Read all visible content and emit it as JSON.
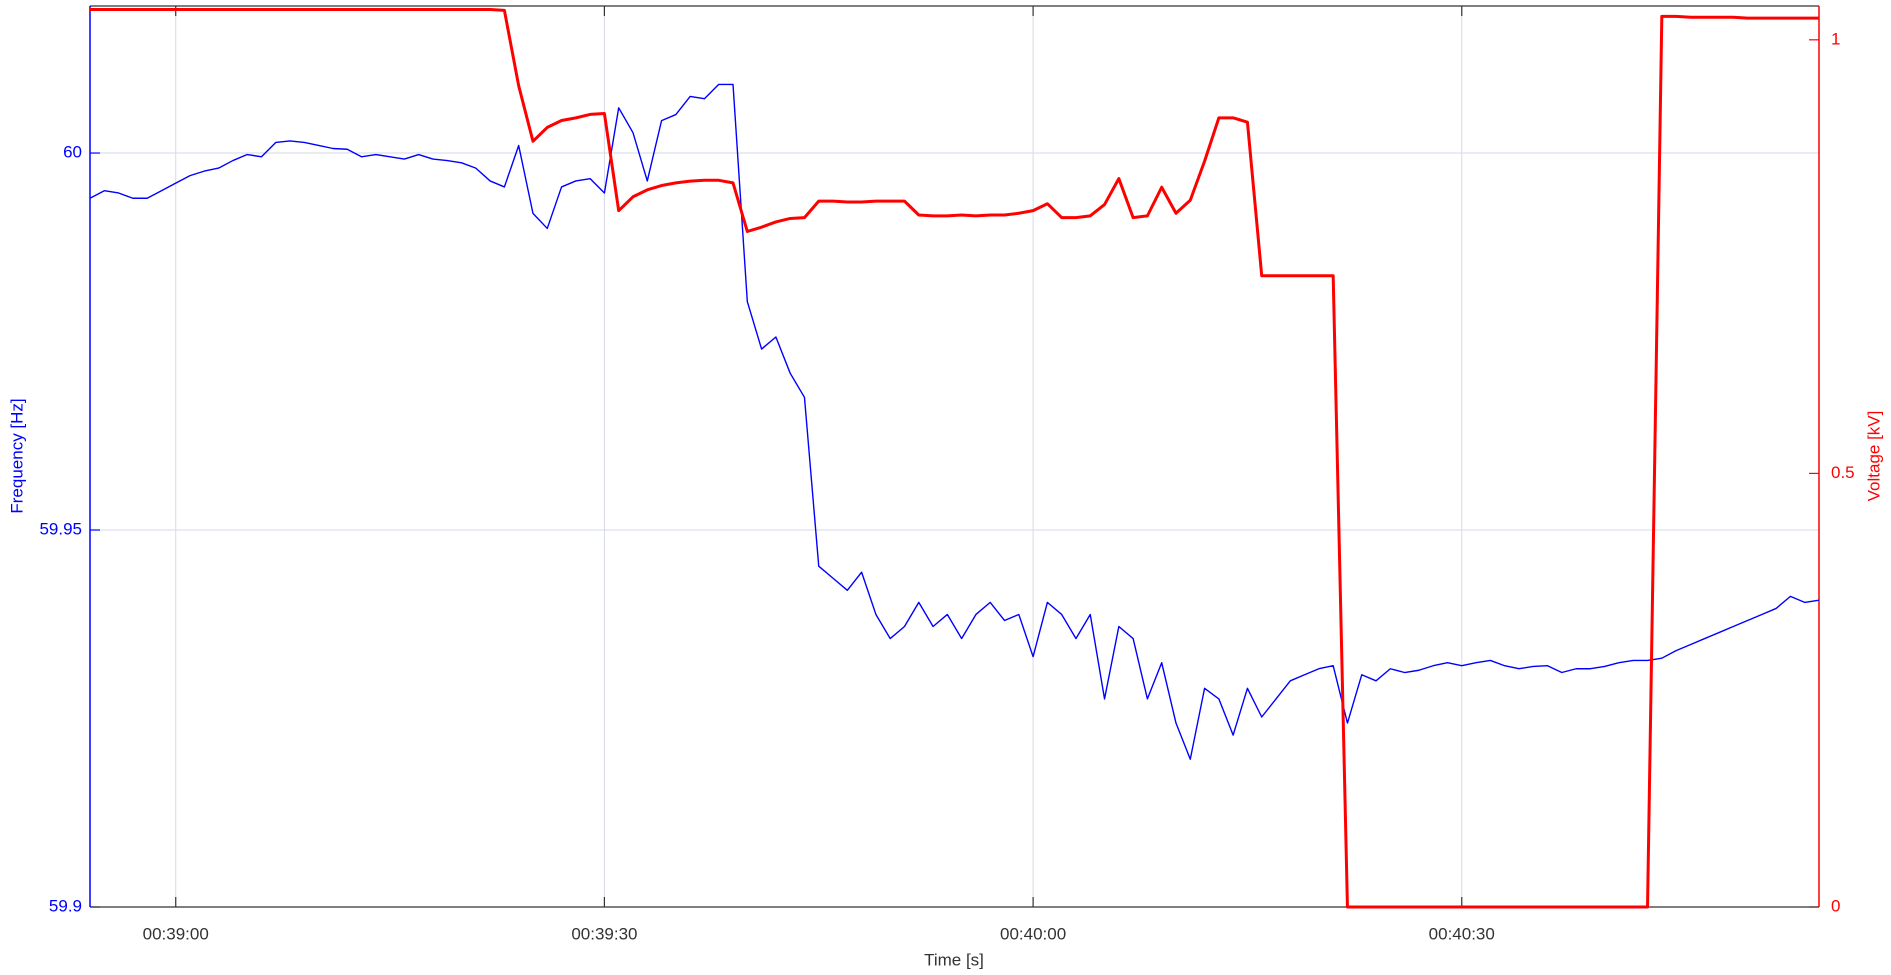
{
  "chart_data": {
    "type": "line",
    "xlabel": "Time [s]",
    "ylabel": "Frequency [Hz]",
    "y2label": "Voltage [kV]",
    "x": [
      2334,
      2335,
      2336,
      2337,
      2338,
      2339,
      2340,
      2341,
      2342,
      2343,
      2344,
      2345,
      2346,
      2347,
      2348,
      2349,
      2350,
      2351,
      2352,
      2353,
      2354,
      2355,
      2356,
      2357,
      2358,
      2359,
      2360,
      2361,
      2362,
      2363,
      2364,
      2365,
      2366,
      2367,
      2368,
      2369,
      2370,
      2371,
      2372,
      2373,
      2374,
      2375,
      2376,
      2377,
      2378,
      2379,
      2380,
      2381,
      2382,
      2383,
      2384,
      2385,
      2386,
      2387,
      2388,
      2389,
      2390,
      2391,
      2392,
      2393,
      2394,
      2395,
      2396,
      2397,
      2398,
      2399,
      2400,
      2401,
      2402,
      2403,
      2404,
      2405,
      2406,
      2407,
      2408,
      2409,
      2410,
      2411,
      2412,
      2413,
      2414,
      2415,
      2416,
      2417,
      2418,
      2419,
      2420,
      2421,
      2422,
      2423,
      2424,
      2425,
      2426,
      2427,
      2428,
      2429,
      2430,
      2431,
      2432,
      2433,
      2434,
      2435,
      2436,
      2437,
      2438,
      2439,
      2440,
      2441,
      2442,
      2443,
      2444,
      2445,
      2446,
      2447,
      2448,
      2449,
      2450,
      2451,
      2452,
      2453,
      2454,
      2455
    ],
    "xlim": [
      2334,
      2455
    ],
    "xticks": [
      {
        "value": 2340,
        "label": "00:39:00"
      },
      {
        "value": 2370,
        "label": "00:39:30"
      },
      {
        "value": 2400,
        "label": "00:40:00"
      },
      {
        "value": 2430,
        "label": "00:40:30"
      }
    ],
    "ylim": [
      59.9,
      60.0195
    ],
    "yticks": [
      59.9,
      59.95,
      60
    ],
    "y2lim": [
      0,
      1.039
    ],
    "y2ticks": [
      0,
      0.5,
      1
    ],
    "grid": true,
    "series": [
      {
        "color": "#0000ff",
        "axis": "y",
        "values": [
          59.994,
          59.995,
          59.9947,
          59.994,
          59.994,
          59.995,
          59.996,
          59.997,
          59.9976,
          59.998,
          59.999,
          59.9998,
          59.9995,
          60.0014,
          60.0016,
          60.0014,
          60.001,
          60.0006,
          60.0005,
          59.9995,
          59.9998,
          59.9995,
          59.9992,
          59.9998,
          59.9992,
          59.999,
          59.9987,
          59.998,
          59.9963,
          59.9955,
          60.001,
          59.992,
          59.99,
          59.9955,
          59.9963,
          59.9966,
          59.9947,
          60.006,
          60.0027,
          59.9963,
          60.0043,
          60.0051,
          60.0075,
          60.0072,
          60.0091,
          60.0091,
          59.9803,
          59.974,
          59.9756,
          59.9708,
          59.9676,
          59.9452,
          59.9436,
          59.942,
          59.9444,
          59.9388,
          59.9356,
          59.9372,
          59.9404,
          59.9372,
          59.9388,
          59.9356,
          59.9388,
          59.9404,
          59.938,
          59.9388,
          59.9332,
          59.9404,
          59.9388,
          59.9356,
          59.9388,
          59.9276,
          59.9372,
          59.9356,
          59.9276,
          59.9324,
          59.9244,
          59.9196,
          59.929,
          59.9276,
          59.9228,
          59.929,
          59.9252,
          59.9276,
          59.93,
          59.9308,
          59.9316,
          59.932,
          59.9244,
          59.9308,
          59.93,
          59.9316,
          59.9311,
          59.9314,
          59.932,
          59.9324,
          59.932,
          59.9324,
          59.9327,
          59.932,
          59.9316,
          59.9319,
          59.932,
          59.9311,
          59.9316,
          59.9316,
          59.9319,
          59.9324,
          59.9327,
          59.9327,
          59.933,
          59.934,
          59.9348,
          59.9356,
          59.9364,
          59.9372,
          59.938,
          59.9388,
          59.9396,
          59.9412,
          59.9404,
          59.9407
        ]
      },
      {
        "color": "#ff0000",
        "axis": "y2",
        "values": [
          1.035,
          1.035,
          1.035,
          1.035,
          1.035,
          1.035,
          1.035,
          1.035,
          1.035,
          1.035,
          1.035,
          1.035,
          1.035,
          1.035,
          1.035,
          1.035,
          1.035,
          1.035,
          1.035,
          1.035,
          1.035,
          1.035,
          1.035,
          1.035,
          1.035,
          1.035,
          1.035,
          1.035,
          1.035,
          1.034,
          0.947,
          0.883,
          0.899,
          0.907,
          0.91,
          0.914,
          0.915,
          0.803,
          0.819,
          0.827,
          0.832,
          0.835,
          0.837,
          0.838,
          0.838,
          0.835,
          0.779,
          0.784,
          0.79,
          0.794,
          0.795,
          0.814,
          0.814,
          0.813,
          0.813,
          0.814,
          0.814,
          0.814,
          0.798,
          0.797,
          0.797,
          0.798,
          0.797,
          0.798,
          0.798,
          0.8,
          0.803,
          0.811,
          0.795,
          0.795,
          0.797,
          0.81,
          0.84,
          0.795,
          0.797,
          0.83,
          0.8,
          0.815,
          0.86,
          0.91,
          0.91,
          0.905,
          0.728,
          0.728,
          0.728,
          0.728,
          0.728,
          0.728,
          0,
          0,
          0,
          0,
          0,
          0,
          0,
          0,
          0,
          0,
          0,
          0,
          0,
          0,
          0,
          0,
          0,
          0,
          0,
          0,
          0,
          0,
          1.027,
          1.027,
          1.026,
          1.026,
          1.026,
          1.026,
          1.025,
          1.025,
          1.025,
          1.025,
          1.025,
          1.025
        ]
      }
    ]
  }
}
